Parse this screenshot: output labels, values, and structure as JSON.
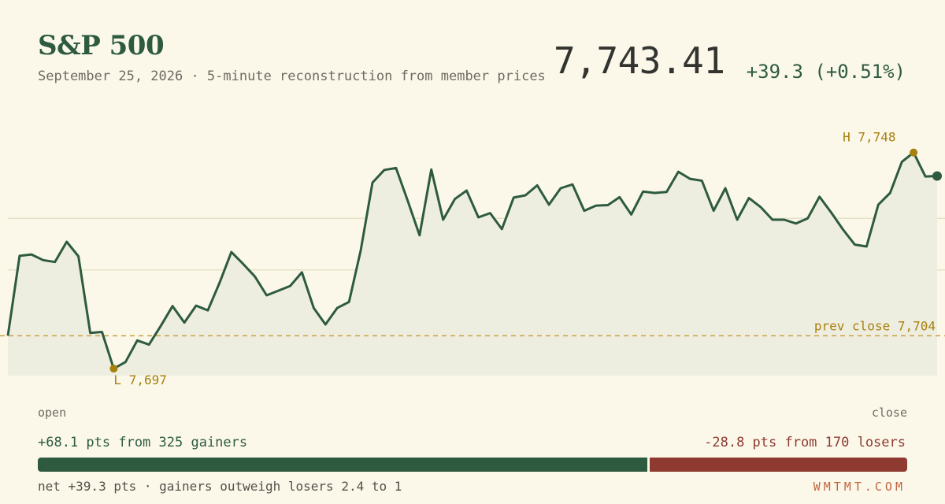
{
  "header": {
    "title": "S&P 500",
    "subtitle": "September 25, 2026 · 5-minute reconstruction from member prices",
    "price": "7,743.41",
    "change": "+39.3 (+0.51%)"
  },
  "colors": {
    "line": "#2e5b3f",
    "fill": "#eeeee0",
    "accent": "#a8800f",
    "gainers": "#2e5b3f",
    "losers": "#8e3a30",
    "background": "#fbf8ea"
  },
  "chart_data": {
    "type": "line",
    "title": "S&P 500",
    "series": [
      {
        "values": [
          7704.0,
          7721.0,
          7721.3,
          7720.1,
          7719.7,
          7724.0,
          7720.9,
          7704.6,
          7704.8,
          7697.0,
          7698.4,
          7703.0,
          7702.1,
          7706.1,
          7710.3,
          7706.8,
          7710.4,
          7709.4,
          7715.3,
          7721.8,
          7719.3,
          7716.6,
          7712.6,
          7713.6,
          7714.6,
          7717.5,
          7709.9,
          7706.4,
          7709.9,
          7711.2,
          7722.2,
          7736.6,
          7739.3,
          7739.7,
          7732.7,
          7725.4,
          7739.4,
          7728.7,
          7733.1,
          7734.9,
          7729.2,
          7730.1,
          7726.7,
          7733.4,
          7733.9,
          7736.0,
          7731.9,
          7735.4,
          7736.2,
          7730.6,
          7731.7,
          7731.8,
          7733.5,
          7729.8,
          7734.7,
          7734.4,
          7734.6,
          7738.9,
          7737.4,
          7737.0,
          7730.6,
          7735.4,
          7728.7,
          7733.3,
          7731.4,
          7728.7,
          7728.7,
          7727.9,
          7729.0,
          7733.6,
          7730.2,
          7726.6,
          7723.4,
          7723.0,
          7731.9,
          7734.4,
          7741.0,
          7743.0,
          7737.9,
          7738.0
        ]
      }
    ],
    "high": {
      "label": "H 7,748"
    },
    "low": {
      "label": "L 7,697"
    },
    "prev_close": {
      "value": 7704,
      "label": "prev close 7,704"
    },
    "x_labels": {
      "start": "open",
      "end": "close"
    },
    "gridlines": [
      7718,
      7729
    ],
    "ylim": [
      7695,
      7752
    ]
  },
  "breadth": {
    "gainers_text": "+68.1 pts from 325 gainers",
    "losers_text": "-28.8 pts from 170 losers",
    "gainers_pts": 68.1,
    "losers_pts": 28.8,
    "net_text": "net +39.3 pts · gainers outweigh losers 2.4 to 1"
  },
  "footer": {
    "brand": "WMTMT.COM"
  }
}
